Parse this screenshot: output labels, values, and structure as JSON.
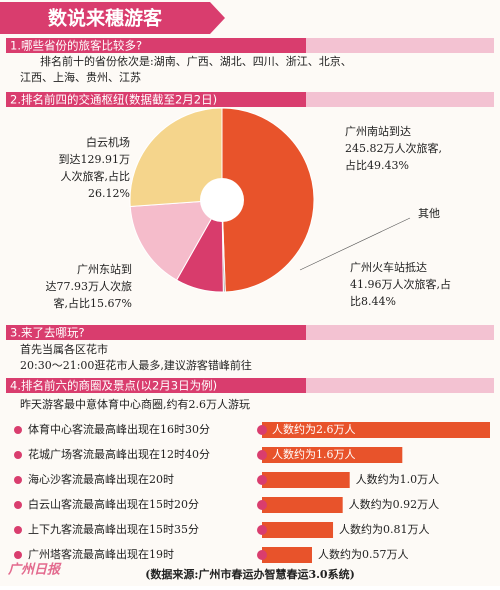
{
  "header": {
    "title": "数说来穗游客"
  },
  "sections": [
    {
      "heading": "1.哪些省份的旅客比较多?",
      "lines": [
        "排名前十的省份依次是:湖南、广西、湖北、四川、浙江、北京、",
        "江西、上海、贵州、江苏"
      ]
    },
    {
      "heading": "2.排名前四的交通枢纽(数据截至2月2日)"
    },
    {
      "heading": "3.来了去哪玩?",
      "lines": [
        "首先当属各区花市",
        "20:30～21:00逛花市人最多,建议游客错峰前往"
      ]
    },
    {
      "heading": "4.排名前六的商圈及景点(以2月3日为例)",
      "lines": [
        "昨天游客最中意体育中心商圈,约有2.6万人游玩"
      ]
    }
  ],
  "pie": {
    "type": "pie",
    "slices": [
      {
        "label_lines": [
          "广州南站到达",
          "245.82万人次旅客,",
          "占比49.43%"
        ],
        "value": 49.43,
        "color": "#e8532b"
      },
      {
        "label_lines": [
          "其他"
        ],
        "value": 0.34,
        "color": "#9a9a9a"
      },
      {
        "label_lines": [
          "广州火车站抵达",
          "41.96万人次旅客,占",
          "比8.44%"
        ],
        "value": 8.44,
        "color": "#d83c6c"
      },
      {
        "label_lines": [
          "广州东站到",
          "达77.93万人次旅",
          "客,占比15.67%"
        ],
        "value": 15.67,
        "color": "#f5bccb"
      },
      {
        "label_lines": [
          "白云机场",
          "到达129.91万",
          "人次旅客,占比",
          "26.12%"
        ],
        "value": 26.12,
        "color": "#f5d58c"
      }
    ]
  },
  "bars": {
    "type": "bar",
    "color": "#e8532b",
    "items": [
      {
        "label": "体育中心客流最高峰出现在16时30分",
        "value": 2.6,
        "value_label": "人数约为2.6万人"
      },
      {
        "label": "花城广场客流最高峰出现在12时40分",
        "value": 1.6,
        "value_label": "人数约为1.6万人"
      },
      {
        "label": "海心沙客流最高峰出现在20时",
        "value": 1.0,
        "value_label": "人数约为1.0万人"
      },
      {
        "label": "白云山客流最高峰出现在15时20分",
        "value": 0.92,
        "value_label": "人数约为0.92万人"
      },
      {
        "label": "上下九客流最高峰出现在15时35分",
        "value": 0.81,
        "value_label": "人数约为0.81万人"
      },
      {
        "label": "广州塔客流最高峰出现在19时",
        "value": 0.57,
        "value_label": "人数约为0.57万人"
      }
    ]
  },
  "footer": {
    "source": "(数据来源:广州市春运办智慧春运3.0系统)",
    "logo": "广州日报"
  }
}
